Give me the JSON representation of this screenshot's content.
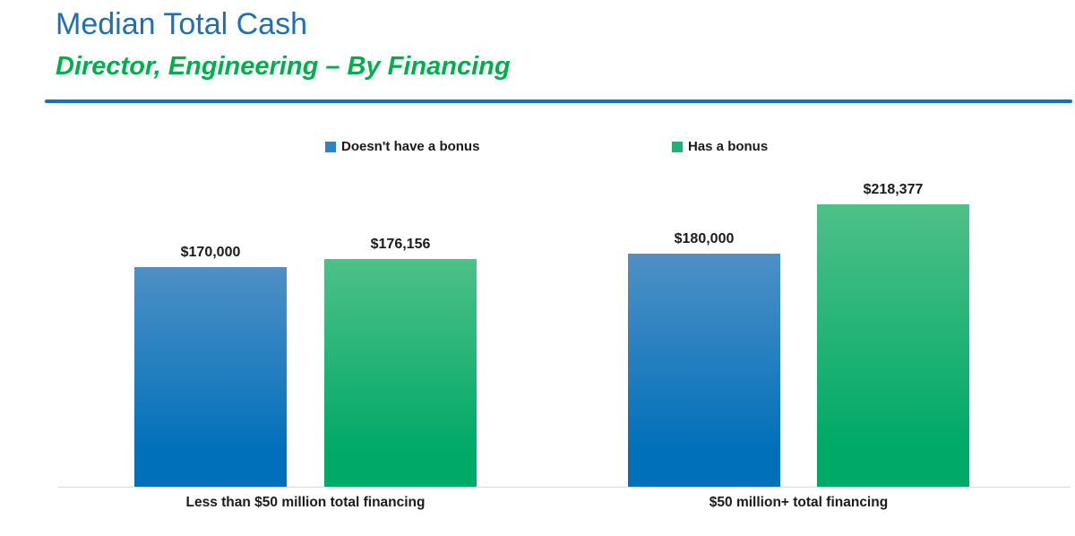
{
  "header": {
    "title": "Median Total Cash",
    "subtitle": "Director, Engineering – By Financing"
  },
  "colors": {
    "title_blue": "#1F6FB2",
    "subtitle_green": "#00AE4E",
    "divider_blue": "#1473B5",
    "blue_top": "#4E90C6",
    "blue_bottom": "#0070BA",
    "blue_solid": "#2E83C1",
    "green_top": "#4EC088",
    "green_bottom": "#00A968",
    "green_solid": "#21B173",
    "label_black": "#1a1a1a",
    "axis_gray": "#d9d9d9"
  },
  "chart_data": {
    "type": "bar",
    "title": "Median Total Cash",
    "subtitle": "Director, Engineering – By Financing",
    "categories": [
      "Less than $50 million total financing",
      "$50 million+ total financing"
    ],
    "series": [
      {
        "name": "Doesn't have a bonus",
        "color": "#2E83C1",
        "values": [
          170000,
          180000
        ],
        "labels": [
          "$170,000",
          "$180,000"
        ]
      },
      {
        "name": "Has a bonus",
        "color": "#21B173",
        "values": [
          176156,
          218377
        ],
        "labels": [
          "$176,156",
          "$218,377"
        ]
      }
    ],
    "ylim": [
      0,
      230000
    ],
    "xlabel": "",
    "ylabel": "",
    "grid": false,
    "y_axis_visible": false,
    "legend_position": "top",
    "value_label_format": "$#,##0"
  }
}
